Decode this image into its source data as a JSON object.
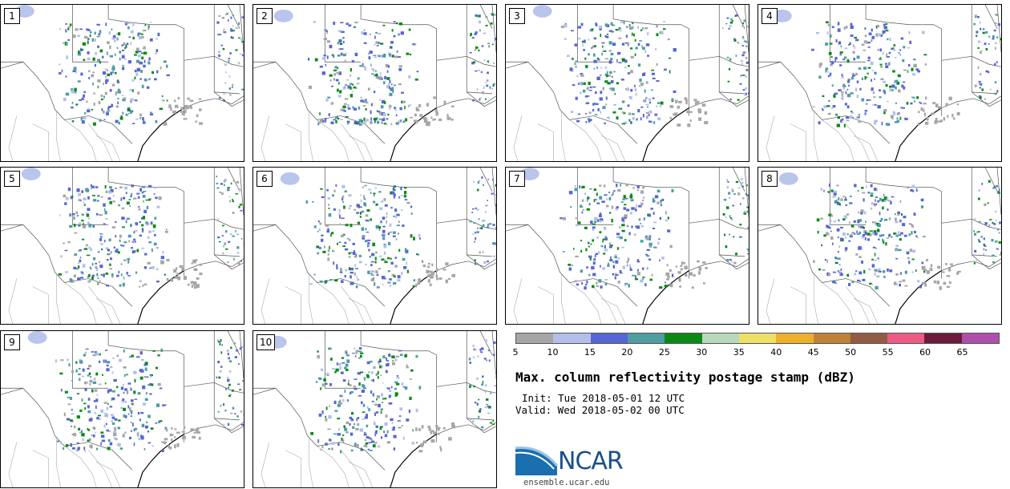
{
  "panels": [
    {
      "label": "1"
    },
    {
      "label": "2"
    },
    {
      "label": "3"
    },
    {
      "label": "4"
    },
    {
      "label": "5"
    },
    {
      "label": "6"
    },
    {
      "label": "7"
    },
    {
      "label": "8"
    },
    {
      "label": "9"
    },
    {
      "label": "10"
    }
  ],
  "colorbar": {
    "ticks": [
      "5",
      "10",
      "15",
      "20",
      "25",
      "30",
      "35",
      "40",
      "45",
      "50",
      "55",
      "60",
      "65"
    ],
    "colors": [
      "#a6a6a6",
      "#b3bfea",
      "#5766d4",
      "#4d9da1",
      "#0a8a14",
      "#b7d9bb",
      "#eedf65",
      "#eeaf2b",
      "#bf8137",
      "#915c43",
      "#ee5a86",
      "#6b1a3c",
      "#b04fab"
    ]
  },
  "title": "Max. column reflectivity postage stamp (dBZ)",
  "init": "Init: Tue 2018-05-01 12 UTC",
  "valid": "Valid: Wed 2018-05-02 00 UTC",
  "logo": {
    "name": "NCAR",
    "website": "ensemble.ucar.edu"
  }
}
